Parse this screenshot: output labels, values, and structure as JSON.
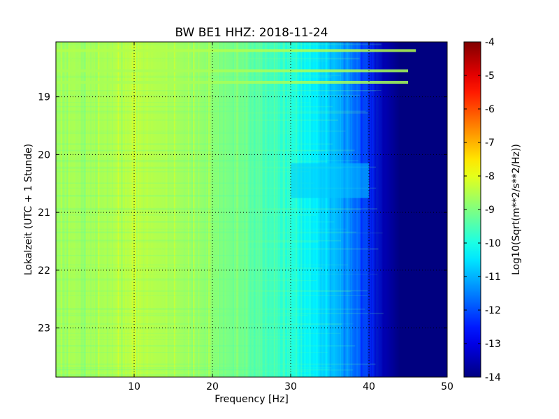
{
  "chart_data": {
    "type": "heatmap",
    "title": "BW BE1 HHZ: 2018-11-24",
    "xlabel": "Frequency [Hz]",
    "ylabel": "Lokalzeit (UTC + 1 Stunde)",
    "colorbar_label": "Log10(Sqrt(m**2/s**2/Hz))",
    "colormap": "jet",
    "xlim": [
      0,
      50
    ],
    "ylim_hours": [
      18.05,
      23.85
    ],
    "y_inverted": true,
    "color_range": [
      -14,
      -4
    ],
    "grid": true,
    "x_ticks": [
      "10",
      "20",
      "30",
      "40",
      "50"
    ],
    "y_ticks": [
      "19",
      "20",
      "21",
      "22",
      "23"
    ],
    "colorbar_ticks": [
      "-4",
      "-5",
      "-6",
      "-7",
      "-8",
      "-9",
      "-10",
      "-11",
      "-12",
      "-13",
      "-14"
    ],
    "frequency_profile": [
      {
        "f": 0,
        "value": -8.7
      },
      {
        "f": 5,
        "value": -8.6
      },
      {
        "f": 10,
        "value": -8.4
      },
      {
        "f": 15,
        "value": -8.6
      },
      {
        "f": 20,
        "value": -8.9
      },
      {
        "f": 25,
        "value": -9.3
      },
      {
        "f": 30,
        "value": -9.9
      },
      {
        "f": 33,
        "value": -10.4
      },
      {
        "f": 36,
        "value": -11.0
      },
      {
        "f": 39,
        "value": -12.0
      },
      {
        "f": 42,
        "value": -13.5
      },
      {
        "f": 44,
        "value": -14.0
      },
      {
        "f": 50,
        "value": -14.0
      }
    ],
    "annotations_bands": [
      {
        "t": 18.2,
        "f_end": 46,
        "value": -8.5
      },
      {
        "t": 18.55,
        "f_end": 45,
        "value": -8.6
      },
      {
        "t": 18.75,
        "f_end": 45,
        "value": -8.6
      }
    ],
    "quiet_block": {
      "t_start": 20.15,
      "t_end": 20.75,
      "f_start": 30,
      "f_end": 40,
      "value": -10.8
    }
  }
}
